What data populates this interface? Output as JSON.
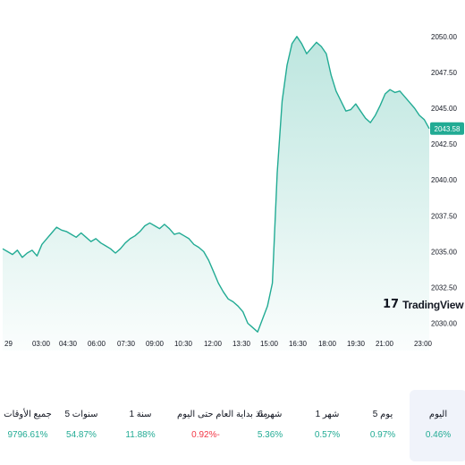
{
  "chart_data": {
    "type": "area",
    "y_ticks": [
      "2050.00",
      "2047.50",
      "2045.00",
      "2042.50",
      "2040.00",
      "2037.50",
      "2035.00",
      "2032.50",
      "2030.00"
    ],
    "ylim": [
      2028.1,
      2051.3
    ],
    "x_ticks": [
      "29",
      "03:00",
      "04:30",
      "06:00",
      "07:30",
      "09:00",
      "10:30",
      "12:00",
      "13:30",
      "15:00",
      "16:30",
      "18:00",
      "19:30",
      "21:00",
      "23:00"
    ],
    "x": [
      "01:30",
      "01:45",
      "02:00",
      "02:15",
      "02:30",
      "02:45",
      "03:00",
      "03:15",
      "03:30",
      "03:45",
      "04:00",
      "04:15",
      "04:30",
      "04:45",
      "05:00",
      "05:15",
      "05:30",
      "05:45",
      "06:00",
      "06:15",
      "06:30",
      "06:45",
      "07:00",
      "07:15",
      "07:30",
      "07:45",
      "08:00",
      "08:15",
      "08:30",
      "08:45",
      "09:00",
      "09:15",
      "09:30",
      "09:45",
      "10:00",
      "10:15",
      "10:30",
      "10:45",
      "11:00",
      "11:15",
      "11:30",
      "11:45",
      "12:00",
      "12:15",
      "12:30",
      "12:45",
      "13:00",
      "13:15",
      "13:30",
      "13:45",
      "14:00",
      "14:15",
      "14:30",
      "14:45",
      "15:00",
      "15:15",
      "15:30",
      "15:45",
      "16:00",
      "16:15",
      "16:30",
      "16:45",
      "17:00",
      "17:15",
      "17:30",
      "17:45",
      "18:00",
      "18:15",
      "18:30",
      "18:45",
      "19:00",
      "19:15",
      "19:30",
      "19:45",
      "20:00",
      "20:15",
      "20:30",
      "20:45",
      "21:00",
      "21:15",
      "21:30",
      "21:45",
      "22:00",
      "22:15",
      "22:30",
      "22:45",
      "23:00",
      "23:15"
    ],
    "values": [
      2035.2,
      2035.0,
      2034.8,
      2035.1,
      2034.6,
      2034.9,
      2035.1,
      2034.7,
      2035.5,
      2035.9,
      2036.3,
      2036.7,
      2036.5,
      2036.4,
      2036.2,
      2036.0,
      2036.3,
      2036.0,
      2035.7,
      2035.9,
      2035.6,
      2035.4,
      2035.2,
      2034.9,
      2035.2,
      2035.6,
      2035.9,
      2036.1,
      2036.4,
      2036.8,
      2037.0,
      2036.8,
      2036.6,
      2036.9,
      2036.6,
      2036.2,
      2036.3,
      2036.1,
      2035.9,
      2035.5,
      2035.3,
      2035.0,
      2034.4,
      2033.6,
      2032.8,
      2032.2,
      2031.7,
      2031.5,
      2031.2,
      2030.8,
      2030.0,
      2029.7,
      2029.4,
      2030.3,
      2031.2,
      2032.8,
      2040.5,
      2045.5,
      2048.0,
      2049.5,
      2050.0,
      2049.5,
      2048.8,
      2049.2,
      2049.6,
      2049.3,
      2048.8,
      2047.3,
      2046.2,
      2045.5,
      2044.8,
      2044.9,
      2045.3,
      2044.8,
      2044.3,
      2044.0,
      2044.5,
      2045.2,
      2046.0,
      2046.3,
      2046.1,
      2046.2,
      2045.8,
      2045.4,
      2045.0,
      2044.5,
      2044.2,
      2043.58
    ],
    "last_value_label": "2043.58",
    "color": "#22ab94"
  },
  "watermark": {
    "text": "TradingView",
    "icon": "tradingview-logo-icon"
  },
  "performance": [
    {
      "label": "اليوم",
      "value": "0.46%",
      "color": "#22ab94",
      "active": true
    },
    {
      "label": "5 يوم",
      "value": "0.97%",
      "color": "#22ab94",
      "active": false
    },
    {
      "label": "1 شهر",
      "value": "0.57%",
      "color": "#22ab94",
      "active": false
    },
    {
      "label": "6 شهر",
      "value": "5.36%",
      "color": "#22ab94",
      "active": false
    },
    {
      "label": "منذ بداية العام حتى اليوم",
      "value": "0.92%-",
      "color": "#f23645",
      "active": false
    },
    {
      "label": "1 سنة",
      "value": "11.88%",
      "color": "#22ab94",
      "active": false
    },
    {
      "label": "5 سنوات",
      "value": "54.87%",
      "color": "#22ab94",
      "active": false
    },
    {
      "label": "جميع الأوقات",
      "value": "9796.61%",
      "color": "#22ab94",
      "active": false
    }
  ]
}
